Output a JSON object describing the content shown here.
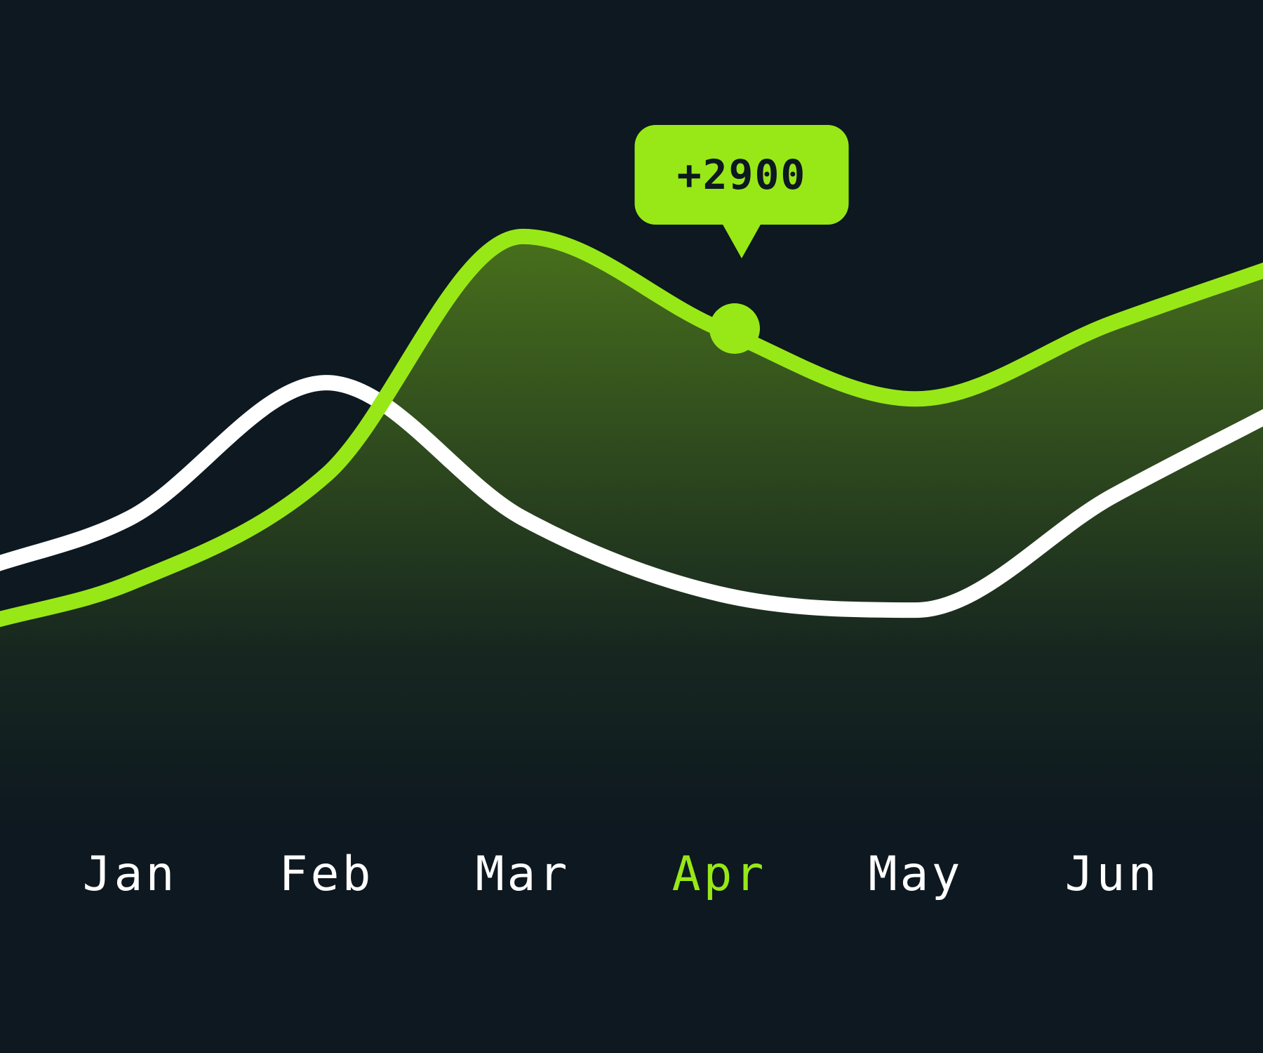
{
  "colors": {
    "background": "#0d1820",
    "accent": "#98e817",
    "secondary_line": "#ffffff",
    "label": "#ffffff",
    "tooltip_text": "#0d1820"
  },
  "chart_data": {
    "type": "line",
    "categories": [
      "Jan",
      "Feb",
      "Mar",
      "Apr",
      "May",
      "Jun"
    ],
    "highlighted_category": "Apr",
    "series": [
      {
        "color": "#98e817",
        "filled_area": true,
        "values": [
          2200,
          3200,
          5400,
          4550,
          3900,
          4600
        ]
      },
      {
        "color": "#ffffff",
        "filled_area": false,
        "values": [
          2800,
          4050,
          2800,
          2100,
          1950,
          3000
        ]
      }
    ],
    "ylim": [
      0,
      7000
    ],
    "grid": false,
    "tooltip": {
      "category": "Apr",
      "series_index": 0,
      "text": "+2900"
    }
  }
}
